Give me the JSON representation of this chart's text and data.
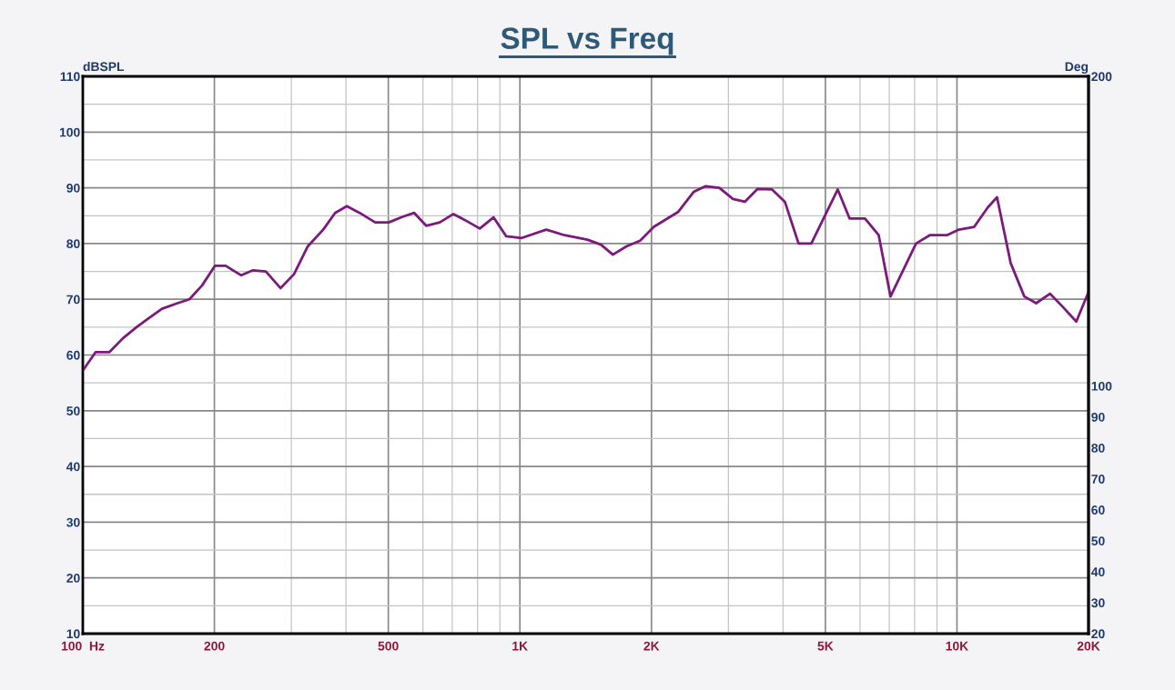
{
  "chart_data": {
    "type": "line",
    "title": "SPL vs Freq",
    "ylabel": "dBSPL",
    "y2label": "Deg",
    "x": [
      100,
      106.9,
      114.9,
      123.5,
      132.7,
      142.6,
      151.8,
      164.7,
      175.3,
      187.5,
      200.5,
      212.4,
      230.4,
      245.2,
      262.3,
      283.3,
      304.2,
      327.1,
      354.8,
      377.7,
      401.9,
      429.9,
      466.5,
      501.2,
      538.8,
      573.2,
      610.2,
      655.7,
      704.6,
      757.1,
      809.6,
      870.3,
      930.8,
      1010,
      1149,
      1265,
      1427,
      1533,
      1632,
      1753,
      1884,
      2025,
      2304,
      2500,
      2661,
      2860,
      3073,
      3270,
      3498,
      3776,
      4039,
      4341,
      4642,
      5336,
      5679,
      6160,
      6621,
      7046,
      8060,
      8660,
      9487,
      10100,
      10950,
      11770,
      12350,
      13270,
      14260,
      15180,
      16320,
      17530,
      18750,
      20000
    ],
    "series": [
      {
        "color": "#7b1a7b",
        "values": [
          57.2,
          60.5,
          60.5,
          63,
          65,
          66.8,
          68.3,
          69.3,
          70,
          72.5,
          76,
          76,
          74.3,
          75.2,
          75,
          72,
          74.5,
          79.5,
          82.5,
          85.5,
          86.7,
          85.5,
          83.8,
          83.8,
          84.8,
          85.5,
          83.2,
          83.8,
          85.3,
          84,
          82.7,
          84.7,
          81.3,
          81,
          82.5,
          81.5,
          80.7,
          79.8,
          78,
          79.5,
          80.5,
          83,
          85.7,
          89.3,
          90.3,
          90,
          88,
          87.5,
          89.8,
          89.7,
          87.5,
          80,
          80,
          89.7,
          84.5,
          84.5,
          81.5,
          70.5,
          80,
          81.5,
          81.5,
          82.5,
          83,
          86.5,
          88.3,
          76.5,
          70.5,
          69.3,
          71,
          68.5,
          66,
          71.3
        ]
      }
    ],
    "log": "x",
    "xlim": [
      100,
      20000
    ],
    "xticks": [
      {
        "value": 100,
        "label": "100  Hz"
      },
      {
        "value": 200,
        "label": "200"
      },
      {
        "value": 300,
        "label": null
      },
      {
        "value": 400,
        "label": null
      },
      {
        "value": 500,
        "label": "500"
      },
      {
        "value": 600,
        "label": null
      },
      {
        "value": 700,
        "label": null
      },
      {
        "value": 800,
        "label": null
      },
      {
        "value": 900,
        "label": null
      },
      {
        "value": 1000,
        "label": "1K"
      },
      {
        "value": 2000,
        "label": "2K"
      },
      {
        "value": 3000,
        "label": null
      },
      {
        "value": 4000,
        "label": null
      },
      {
        "value": 5000,
        "label": "5K"
      },
      {
        "value": 6000,
        "label": null
      },
      {
        "value": 7000,
        "label": null
      },
      {
        "value": 8000,
        "label": null
      },
      {
        "value": 9000,
        "label": null
      },
      {
        "value": 10000,
        "label": "10K"
      },
      {
        "value": 20000,
        "label": "20K"
      }
    ],
    "ylim": [
      10,
      110
    ],
    "yticks": [
      10,
      {
        "value": 15,
        "label": null
      },
      20,
      {
        "value": 25,
        "label": null
      },
      30,
      {
        "value": 35,
        "label": null
      },
      40,
      {
        "value": 45,
        "label": null
      },
      50,
      {
        "value": 55,
        "label": null
      },
      60,
      {
        "value": 65,
        "label": null
      },
      70,
      {
        "value": 75,
        "label": null
      },
      80,
      {
        "value": 85,
        "label": null
      },
      90,
      {
        "value": 95,
        "label": null
      },
      100,
      {
        "value": 105,
        "label": null
      },
      110
    ],
    "y2lim": [
      20,
      200
    ],
    "y2ticks": [
      20,
      30,
      40,
      50,
      60,
      70,
      80,
      90,
      100,
      200
    ],
    "grid": true,
    "marker": "none",
    "line_style": "solid"
  }
}
